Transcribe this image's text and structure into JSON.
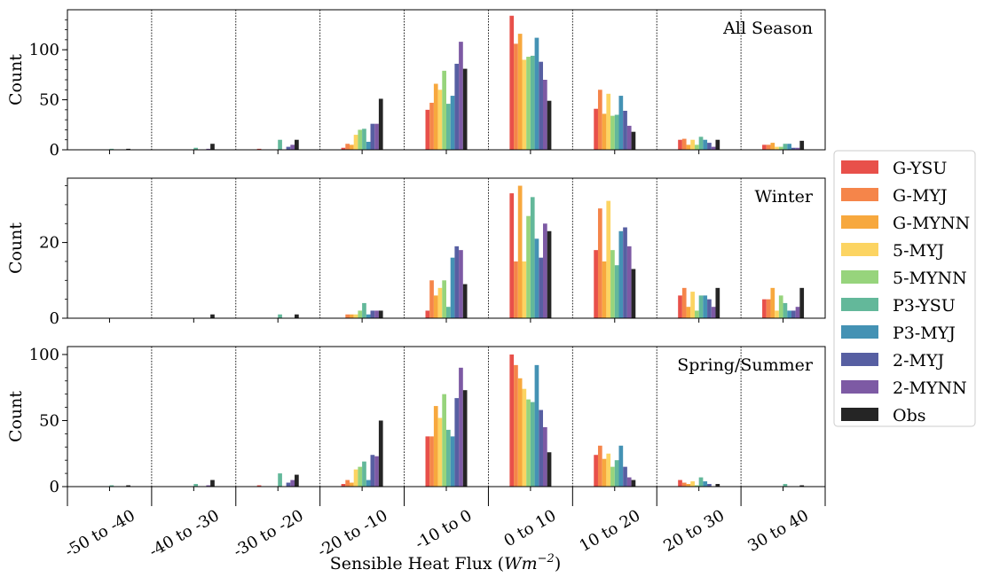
{
  "chart_data": {
    "type": "bar",
    "xlabel": "Sensible Heat Flux (",
    "xlabel_math": "Wm",
    "xlabel_exp": "−2",
    "xlabel_close": ")",
    "categories": [
      "-50 to -40",
      "-40 to -30",
      "-30 to -20",
      "-20 to -10",
      "-10 to 0",
      "0 to 10",
      "10 to 20",
      "20 to 30",
      "30 to 40"
    ],
    "legend_position": "right",
    "series_info": [
      {
        "name": "G-YSU",
        "color": "#e8504a"
      },
      {
        "name": "G-MYJ",
        "color": "#f5854a"
      },
      {
        "name": "G-MYNN",
        "color": "#f7a83e"
      },
      {
        "name": "5-MYJ",
        "color": "#fcd462"
      },
      {
        "name": "5-MYNN",
        "color": "#97d47c"
      },
      {
        "name": "P3-YSU",
        "color": "#63b89a"
      },
      {
        "name": "P3-MYJ",
        "color": "#4492b4"
      },
      {
        "name": "2-MYJ",
        "color": "#575fa2"
      },
      {
        "name": "2-MYNN",
        "color": "#7d5aa4"
      },
      {
        "name": "Obs",
        "color": "#252525"
      }
    ],
    "panels": [
      {
        "title": "All Season",
        "ylabel": "Count",
        "ylim": [
          0,
          140
        ],
        "yticks": [
          0,
          50,
          100
        ],
        "values": [
          [
            0,
            0,
            0,
            0,
            0,
            1,
            0,
            0,
            0,
            1
          ],
          [
            0,
            0,
            0,
            0,
            0,
            2,
            0,
            0,
            1,
            6
          ],
          [
            1,
            0,
            0,
            0,
            0,
            10,
            0,
            3,
            5,
            10
          ],
          [
            2,
            6,
            5,
            15,
            20,
            21,
            8,
            26,
            26,
            51
          ],
          [
            40,
            47,
            66,
            60,
            79,
            46,
            54,
            86,
            108,
            81
          ],
          [
            134,
            106,
            116,
            90,
            93,
            94,
            112,
            88,
            70,
            49
          ],
          [
            41,
            60,
            36,
            56,
            34,
            35,
            54,
            39,
            24,
            18
          ],
          [
            10,
            11,
            5,
            10,
            5,
            13,
            10,
            7,
            3,
            10
          ],
          [
            5,
            5,
            7,
            3,
            3,
            6,
            6,
            2,
            2,
            9
          ]
        ]
      },
      {
        "title": "Winter",
        "ylabel": "Count",
        "ylim": [
          0,
          37
        ],
        "yticks": [
          0,
          20
        ],
        "values": [
          [
            0,
            0,
            0,
            0,
            0,
            0,
            0,
            0,
            0,
            0
          ],
          [
            0,
            0,
            0,
            0,
            0,
            0,
            0,
            0,
            0,
            1
          ],
          [
            0,
            0,
            0,
            0,
            0,
            1,
            0,
            0,
            0,
            1
          ],
          [
            0,
            1,
            1,
            1,
            2,
            4,
            1,
            2,
            2,
            2
          ],
          [
            2,
            10,
            6,
            8,
            10,
            3,
            16,
            19,
            18,
            9
          ],
          [
            33,
            15,
            35,
            15,
            27,
            32,
            21,
            16,
            25,
            23
          ],
          [
            18,
            29,
            15,
            31,
            18,
            14,
            23,
            24,
            19,
            13
          ],
          [
            6,
            8,
            3,
            7,
            2,
            6,
            6,
            5,
            3,
            8
          ],
          [
            5,
            5,
            8,
            2,
            6,
            4,
            2,
            2,
            3,
            8
          ]
        ]
      },
      {
        "title": "Spring/Summer",
        "ylabel": "Count",
        "ylim": [
          0,
          106
        ],
        "yticks": [
          0,
          50,
          100
        ],
        "values": [
          [
            0,
            0,
            0,
            0,
            0,
            1,
            0,
            0,
            0,
            1
          ],
          [
            0,
            0,
            0,
            0,
            0,
            2,
            0,
            0,
            1,
            5
          ],
          [
            1,
            0,
            0,
            0,
            0,
            10,
            0,
            3,
            5,
            9
          ],
          [
            2,
            5,
            3,
            13,
            15,
            19,
            5,
            24,
            23,
            50
          ],
          [
            38,
            38,
            61,
            52,
            70,
            43,
            38,
            67,
            90,
            73
          ],
          [
            100,
            92,
            82,
            74,
            66,
            64,
            92,
            58,
            45,
            26
          ],
          [
            24,
            31,
            21,
            25,
            15,
            20,
            31,
            15,
            7,
            5
          ],
          [
            5,
            3,
            2,
            4,
            1,
            7,
            4,
            2,
            0,
            2
          ],
          [
            0,
            0,
            0,
            0,
            0,
            2,
            0,
            0,
            0,
            1
          ]
        ]
      }
    ]
  }
}
